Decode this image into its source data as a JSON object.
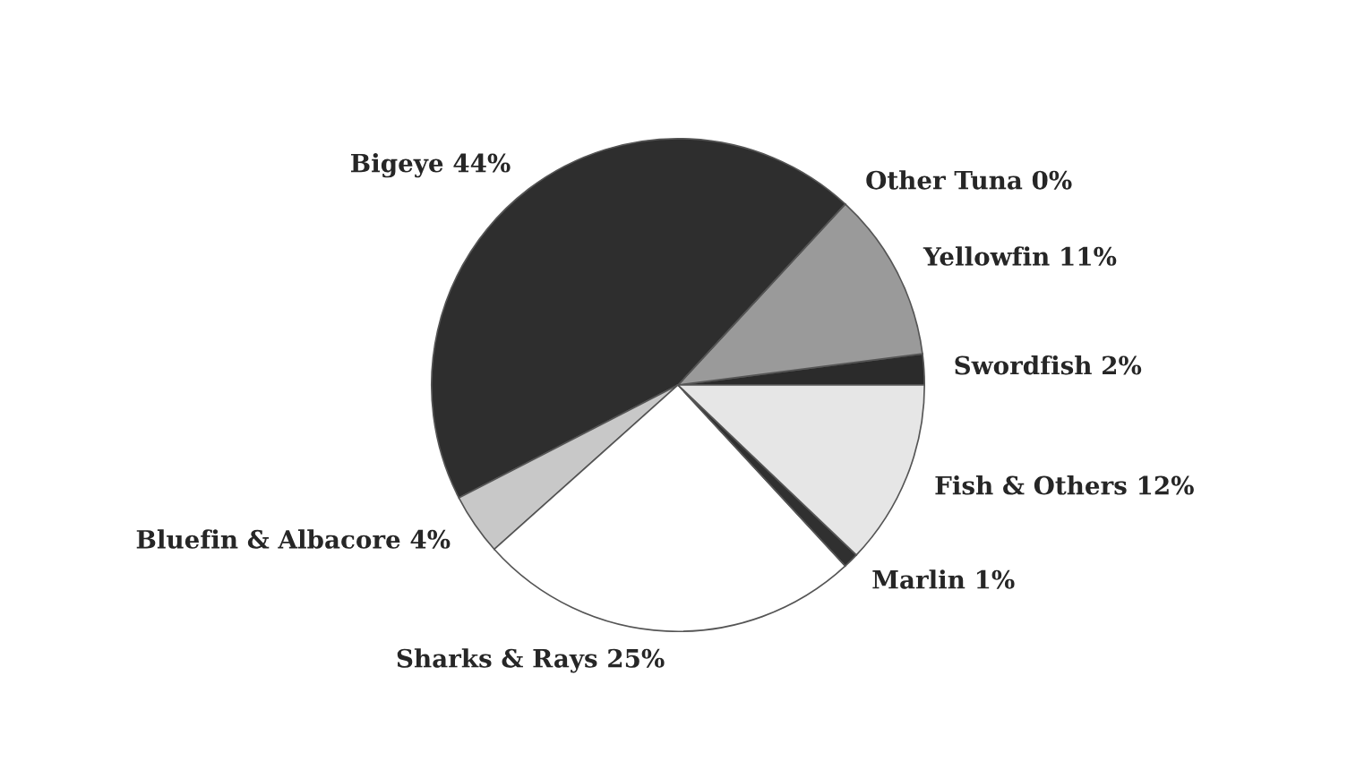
{
  "chart_data": {
    "type": "pie",
    "categories": [
      "Swordfish",
      "Yellowfin",
      "Other Tuna",
      "Bigeye",
      "Bluefin & Albacore",
      "Sharks & Rays",
      "Marlin",
      "Fish & Others"
    ],
    "values": [
      2,
      11,
      0,
      44,
      4,
      25,
      1,
      12
    ],
    "value_labels": [
      "2%",
      "11%",
      "0%",
      "44%",
      "4%",
      "25%",
      "1%",
      "12%"
    ],
    "colors": [
      "#2b2b2b",
      "#9a9a9a",
      "#777777",
      "#2e2e2e",
      "#c8c8c8",
      "#ffffff",
      "#303030",
      "#e6e6e6"
    ],
    "legend": false
  }
}
